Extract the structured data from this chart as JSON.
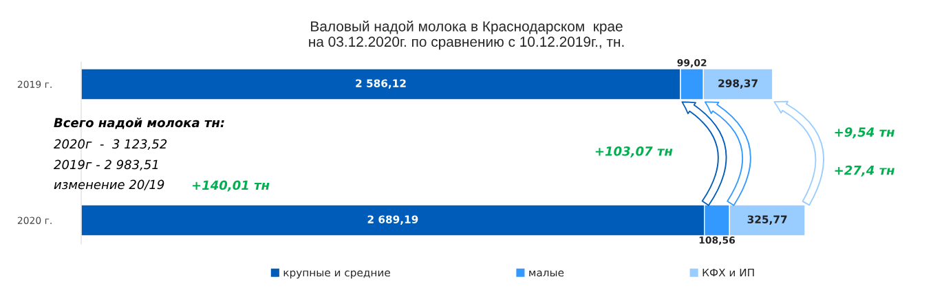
{
  "chart_data": {
    "type": "bar",
    "orientation": "horizontal",
    "stacked": true,
    "title": "Валовый надой молока в Краснодарском  крае\nна 03.12.2020г. по сравнению с 10.12.2019г., тн.",
    "categories": [
      "2019 г.",
      "2020 г."
    ],
    "series": [
      {
        "name": "крупные и средние",
        "color": "#005CB9",
        "values": [
          2586.12,
          2689.19
        ],
        "value_labels": [
          "2 586,12",
          "2 689,19"
        ]
      },
      {
        "name": "малые",
        "color": "#3399FF",
        "values": [
          99.02,
          108.56
        ],
        "value_labels": [
          "99,02",
          "108,56"
        ]
      },
      {
        "name": "КФХ и ИП",
        "color": "#99CCFF",
        "values": [
          298.37,
          325.77
        ],
        "value_labels": [
          "298,37",
          "325,77"
        ]
      }
    ],
    "annotations": [
      "Всего надой молока тн:",
      "2020г  -  3 123,52",
      "2019г - 2 983,51",
      "изменение 20/19",
      "+140,01 тн",
      "+103,07 тн",
      "+9,54 тн",
      "+27,4 тн"
    ],
    "legend": "bottom"
  }
}
